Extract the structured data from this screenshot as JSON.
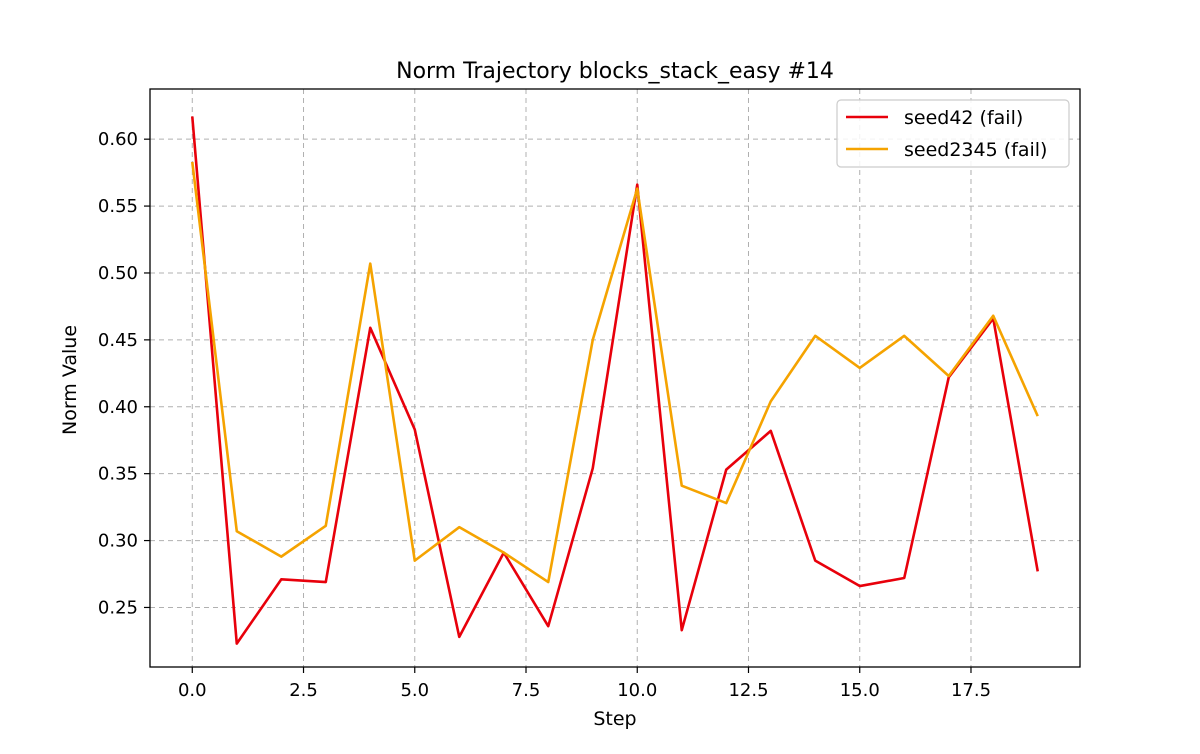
{
  "chart_data": {
    "type": "line",
    "title": "Norm Trajectory blocks_stack_easy #14",
    "xlabel": "Step",
    "ylabel": "Norm Value",
    "xlim": [
      -0.95,
      19.95
    ],
    "ylim": [
      0.2055,
      0.6375
    ],
    "xticks": [
      0.0,
      2.5,
      5.0,
      7.5,
      10.0,
      12.5,
      15.0,
      17.5
    ],
    "xtick_labels": [
      "0.0",
      "2.5",
      "5.0",
      "7.5",
      "10.0",
      "12.5",
      "15.0",
      "17.5"
    ],
    "yticks": [
      0.25,
      0.3,
      0.35,
      0.4,
      0.45,
      0.5,
      0.55,
      0.6
    ],
    "ytick_labels": [
      "0.25",
      "0.30",
      "0.35",
      "0.40",
      "0.45",
      "0.50",
      "0.55",
      "0.60"
    ],
    "grid": true,
    "legend_position": "top-right",
    "x": [
      0,
      1,
      2,
      3,
      4,
      5,
      6,
      7,
      8,
      9,
      10,
      11,
      12,
      13,
      14,
      15,
      16,
      17,
      18,
      19
    ],
    "series": [
      {
        "name": "seed42 (fail)",
        "color": "#e8000b",
        "values": [
          0.617,
          0.223,
          0.271,
          0.269,
          0.459,
          0.383,
          0.228,
          0.291,
          0.236,
          0.354,
          0.566,
          0.233,
          0.353,
          0.382,
          0.285,
          0.266,
          0.272,
          0.422,
          0.466,
          0.277
        ]
      },
      {
        "name": "seed2345 (fail)",
        "color": "#f5a300",
        "values": [
          0.583,
          0.307,
          0.288,
          0.311,
          0.507,
          0.285,
          0.31,
          0.291,
          0.269,
          0.45,
          0.563,
          0.341,
          0.328,
          0.404,
          0.453,
          0.429,
          0.453,
          0.423,
          0.468,
          0.393
        ]
      }
    ]
  }
}
